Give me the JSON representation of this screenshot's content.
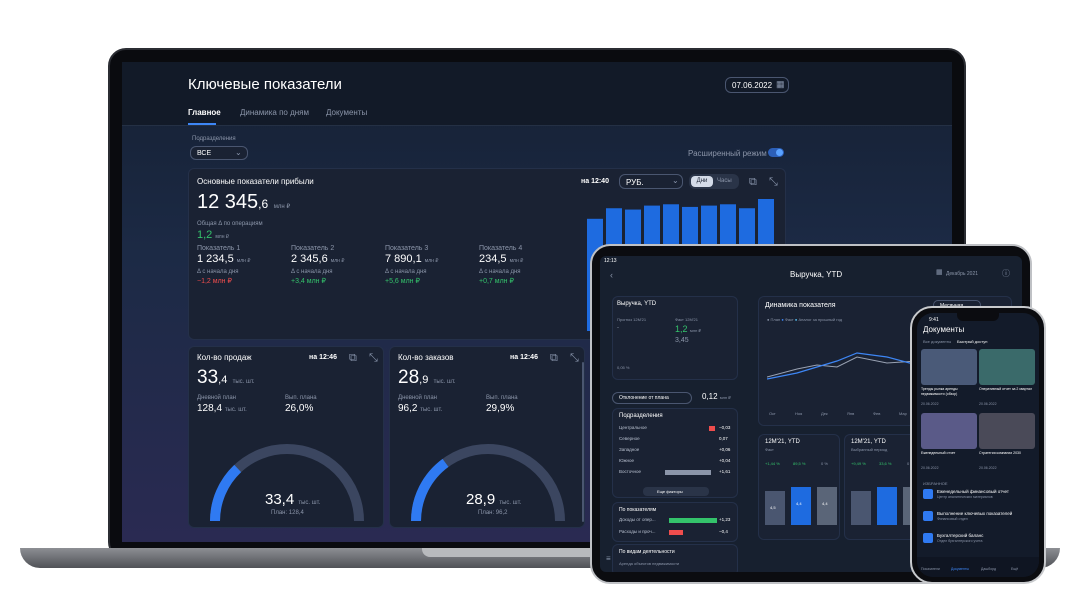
{
  "laptop": {
    "title": "Ключевые показатели",
    "date": "07.06.2022",
    "tabs": [
      "Главное",
      "Динамика по дням",
      "Документы"
    ],
    "division_label": "Подразделения",
    "division_value": "ВСЕ",
    "extended_mode": "Расширенный режим",
    "profit": {
      "title": "Основные показатели прибыли",
      "at_time": "на 12:40",
      "currency": "РУБ.",
      "toggle": [
        "Дни",
        "Часы"
      ],
      "main_int": "12 345",
      "main_dec": ",6",
      "main_unit": "млн ₽",
      "delta_label": "Общая Δ по операциям",
      "delta_value": "1,2",
      "delta_unit": "млн ₽",
      "since_label": "Δ с начала дня",
      "metrics": [
        {
          "name": "Показатель 1",
          "int": "1 234,5",
          "unit": "млн ₽",
          "delta": "−1,2 млн ₽",
          "sign": "neg"
        },
        {
          "name": "Показатель 2",
          "int": "2 345,6",
          "unit": "млн ₽",
          "delta": "+3,4 млн ₽",
          "sign": "pos"
        },
        {
          "name": "Показатель 3",
          "int": "7 890,1",
          "unit": "млн ₽",
          "delta": "+5,6 млн ₽",
          "sign": "pos"
        },
        {
          "name": "Показатель 4",
          "int": "234,5",
          "unit": "млн ₽",
          "delta": "+0,7 млн ₽",
          "sign": "pos"
        }
      ],
      "bar_levels": [
        0.85,
        0.93,
        0.92,
        0.95,
        0.96,
        0.94,
        0.95,
        0.96,
        0.93,
        1.0
      ]
    },
    "sales": {
      "title": "Кол-во продаж",
      "at_time": "на 12:46",
      "int": "33",
      "dec": ",4",
      "unit": "тыс. шт.",
      "plan_label": "Дневной план",
      "plan_value": "128,4",
      "plan_unit": "тыс. шт.",
      "done_label": "Вып. плана",
      "done_value": "26,0%",
      "gauge_value": "33,4",
      "gauge_unit": "тыс. шт.",
      "gauge_plan": "План: 128,4",
      "fraction": 0.26
    },
    "orders": {
      "title": "Кол-во заказов",
      "at_time": "на 12:46",
      "int": "28",
      "dec": ",9",
      "unit": "тыс. шт.",
      "plan_label": "Дневной план",
      "plan_value": "96,2",
      "plan_unit": "тыс. шт.",
      "done_label": "Вып. плана",
      "done_value": "29,9%",
      "gauge_value": "28,9",
      "gauge_unit": "тыс. шт.",
      "gauge_plan": "План: 96,2",
      "fraction": 0.299
    }
  },
  "tablet": {
    "time": "12:13",
    "title": "Выручка, YTD",
    "month": "Декабрь 2021",
    "card_title": "Выручка, YTD",
    "forecast_label": "Прогноз 12М'21",
    "fact_label": "Факт 12М'21",
    "fact_value": "1,2",
    "fact_unit": "млн ₽",
    "sub_value": "3,45",
    "yoy": "0,05 %",
    "dynamics_title": "Динамика показателя",
    "dynamics_mode": "Месячная",
    "legend": [
      "План",
      "Факт",
      "Аналог за прошлый год"
    ],
    "months": [
      "Окт",
      "Ноя",
      "Дек",
      "Янв",
      "Фев",
      "Мар",
      "Апр",
      "Май",
      "Июн"
    ],
    "deviation_label": "Отклонение от плана",
    "deviation_value": "0,12",
    "deviation_unit": "млн ₽",
    "divisions_title": "Подразделения",
    "divisions": [
      {
        "name": "Центральное",
        "value": "−0,03"
      },
      {
        "name": "Северное",
        "value": "0,07"
      },
      {
        "name": "Западное",
        "value": "+0,06"
      },
      {
        "name": "Южное",
        "value": "+0,04"
      },
      {
        "name": "Восточное",
        "value": "+1,61"
      }
    ],
    "more_factors": "Еще факторы",
    "by_metrics_title": "По показателям",
    "by_metrics": [
      {
        "name": "Доходы от опер...",
        "value": "+1,23"
      },
      {
        "name": "Расходы и проч...",
        "value": "−0,4"
      }
    ],
    "by_activity_title": "По видам деятельности",
    "activity_item": "Аренда объектов недвижимости",
    "mini1_title": "12М'21, YTD",
    "mini1_sub": "Факт",
    "mini1_values": [
      "+1,44 %",
      "89,5 %",
      "0 %"
    ],
    "mini2_title": "12М'21, YTD",
    "mini2_sub": "Выбранный период",
    "mini2_values": [
      "+9,49 %",
      "33,6 %",
      "0 %"
    ],
    "mini_bar_labels": [
      "4,5",
      "4,4",
      "4,4"
    ]
  },
  "phone": {
    "time": "9:41",
    "title": "Документы",
    "tabs": [
      "Все документы",
      "Быстрый доступ"
    ],
    "docs": [
      {
        "title": "Тренды рынка аренды недвижимости (обзор)",
        "date": "20.06.2022"
      },
      {
        "title": "Оперативный отчет за 2 квартал",
        "date": "20.06.2022"
      },
      {
        "title": "Еженедельный отчет",
        "date": "20.06.2022"
      },
      {
        "title": "Стратегия компании 2030",
        "date": "20.06.2022"
      }
    ],
    "favorites_label": "ИЗБРАННОЕ",
    "favorites": [
      {
        "title": "Еженедельный финансовый отчет",
        "sub": "Центр аналитических материалов"
      },
      {
        "title": "Выполнение ключевых показателей",
        "sub": "Финансовый отдел"
      },
      {
        "title": "Бухгалтерский баланс",
        "sub": "Отдел бухгалтерского учета"
      }
    ],
    "nav": [
      "Показатели",
      "Документы",
      "Дашборд",
      "Ещё"
    ]
  }
}
